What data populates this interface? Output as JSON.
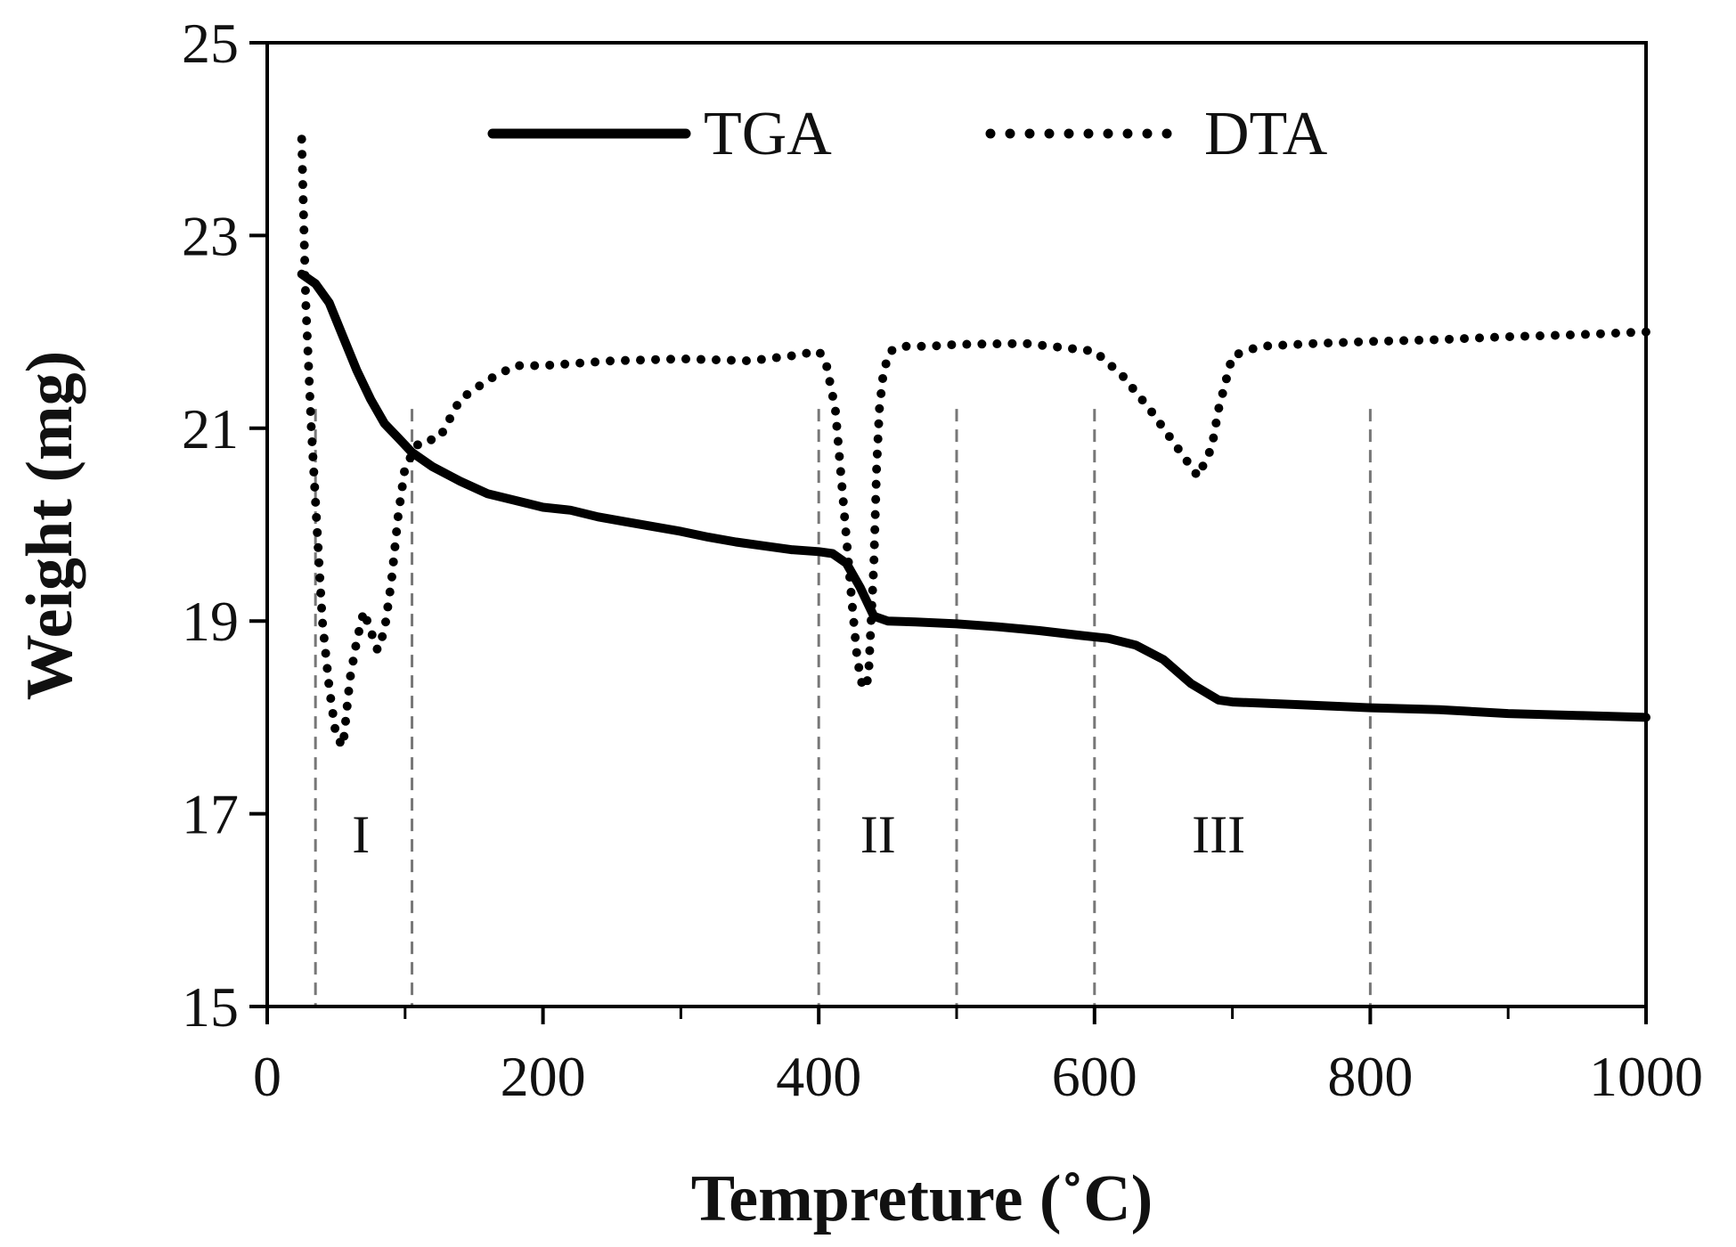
{
  "chart_data": {
    "type": "line",
    "title": "",
    "xlabel": "Tempreture (˚C)",
    "ylabel": "Weight (mg)",
    "xlim": [
      0,
      1000
    ],
    "ylim": [
      15,
      25
    ],
    "xticks": [
      0,
      200,
      400,
      600,
      800,
      1000
    ],
    "yticks": [
      15,
      17,
      19,
      21,
      23,
      25
    ],
    "minor_xticks": [
      100,
      300,
      500,
      700,
      900
    ],
    "grid": false,
    "legend_position": "top-center",
    "series": [
      {
        "name": "TGA",
        "style": "solid",
        "color": "#000000",
        "x": [
          25,
          35,
          45,
          55,
          65,
          75,
          85,
          95,
          105,
          120,
          140,
          160,
          180,
          200,
          220,
          240,
          260,
          280,
          300,
          320,
          340,
          360,
          380,
          400,
          410,
          420,
          430,
          440,
          450,
          470,
          500,
          530,
          560,
          590,
          610,
          630,
          650,
          670,
          690,
          700,
          750,
          800,
          850,
          900,
          950,
          1000
        ],
        "y": [
          22.6,
          22.5,
          22.3,
          21.95,
          21.6,
          21.3,
          21.05,
          20.9,
          20.75,
          20.6,
          20.45,
          20.32,
          20.25,
          20.18,
          20.15,
          20.08,
          20.03,
          19.98,
          19.93,
          19.87,
          19.82,
          19.78,
          19.74,
          19.72,
          19.7,
          19.6,
          19.35,
          19.05,
          19.0,
          18.99,
          18.97,
          18.94,
          18.9,
          18.85,
          18.82,
          18.75,
          18.6,
          18.35,
          18.18,
          18.16,
          18.13,
          18.1,
          18.08,
          18.04,
          18.02,
          18.0
        ]
      },
      {
        "name": "DTA",
        "style": "dotted",
        "color": "#000000",
        "x": [
          25,
          28,
          32,
          36,
          40,
          45,
          50,
          55,
          60,
          65,
          70,
          75,
          80,
          85,
          90,
          95,
          100,
          110,
          125,
          140,
          160,
          180,
          200,
          250,
          300,
          350,
          380,
          400,
          405,
          412,
          418,
          424,
          428,
          432,
          436,
          440,
          442,
          444,
          447,
          452,
          460,
          480,
          500,
          550,
          600,
          620,
          640,
          660,
          675,
          685,
          690,
          700,
          720,
          760,
          800,
          850,
          900,
          950,
          1000
        ],
        "y": [
          24.0,
          22.3,
          21.0,
          20.0,
          19.0,
          18.3,
          17.8,
          17.7,
          18.4,
          18.8,
          19.1,
          18.9,
          18.7,
          18.9,
          19.4,
          20.1,
          20.6,
          20.85,
          20.9,
          21.3,
          21.5,
          21.65,
          21.65,
          21.7,
          21.72,
          21.7,
          21.75,
          21.8,
          21.7,
          21.2,
          20.2,
          19.2,
          18.6,
          18.3,
          18.4,
          19.6,
          20.6,
          21.2,
          21.6,
          21.8,
          21.85,
          21.85,
          21.87,
          21.88,
          21.8,
          21.55,
          21.2,
          20.8,
          20.5,
          20.8,
          21.2,
          21.75,
          21.85,
          21.88,
          21.9,
          21.92,
          21.95,
          21.97,
          22.0
        ]
      }
    ],
    "reference_lines": [
      35,
      105,
      400,
      500,
      600,
      800
    ],
    "region_labels": [
      {
        "text": "I",
        "x": 68
      },
      {
        "text": "II",
        "x": 443
      },
      {
        "text": "III",
        "x": 690
      }
    ],
    "region_label_y": 16.6
  }
}
